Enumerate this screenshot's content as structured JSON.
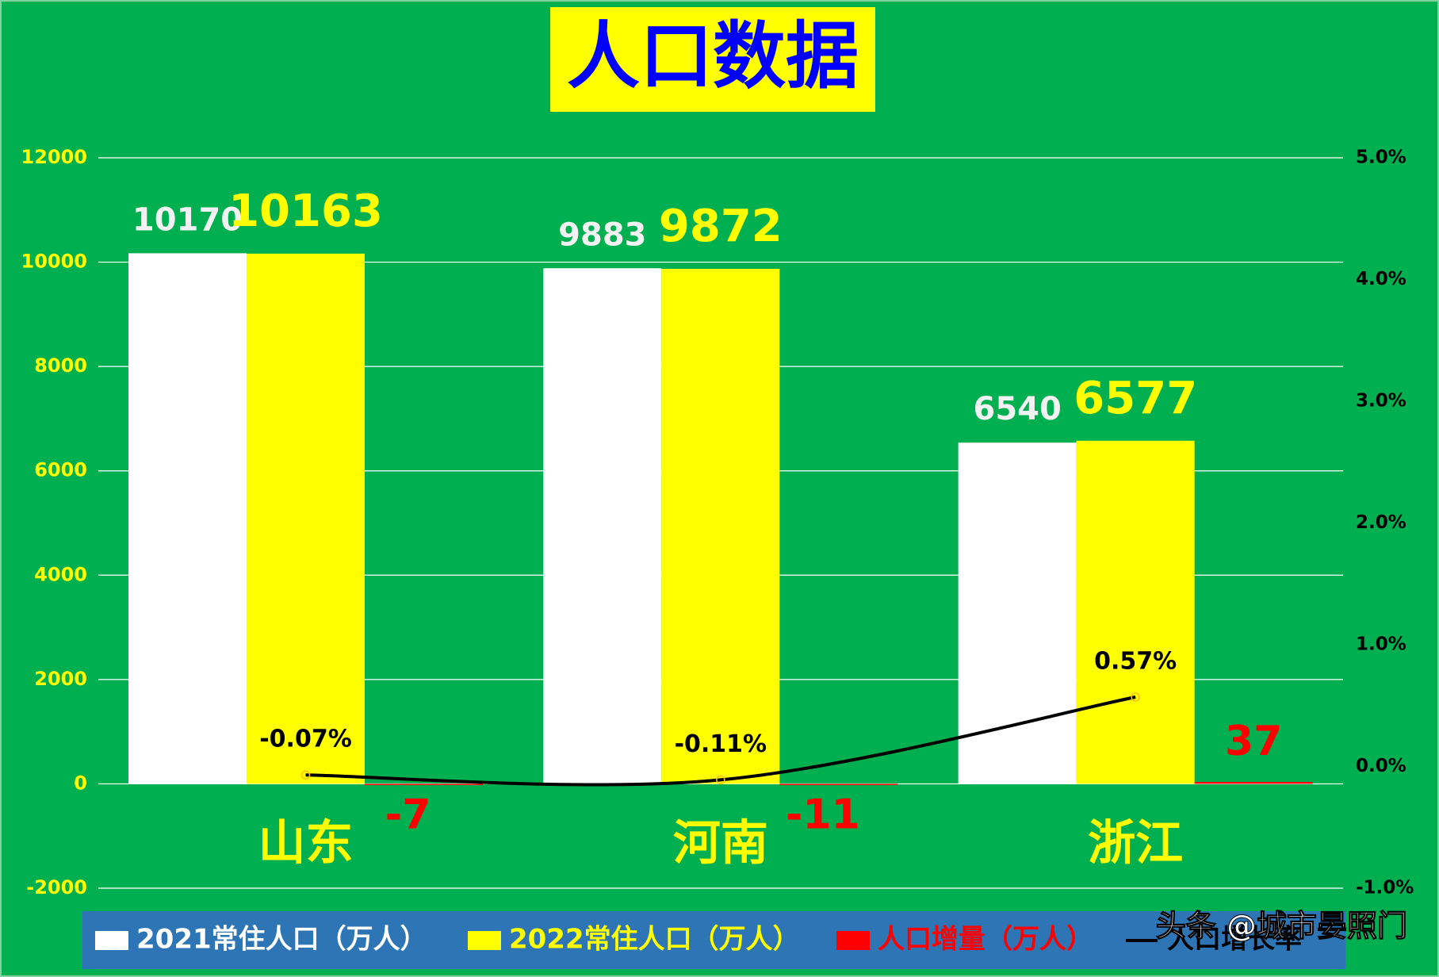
{
  "chart_data": {
    "type": "combo",
    "title": "人口数据",
    "categories": [
      "山东",
      "河南",
      "浙江"
    ],
    "series": [
      {
        "name": "2021常住人口（万人）",
        "color": "#ffffff",
        "type": "bar",
        "values": [
          10170,
          9883,
          6540
        ]
      },
      {
        "name": "2022常住人口（万人）",
        "color": "#ffff00",
        "type": "bar",
        "values": [
          10163,
          9872,
          6577
        ]
      },
      {
        "name": "人口增量（万人）",
        "color": "#ff0000",
        "type": "bar",
        "values": [
          -7,
          -11,
          37
        ]
      },
      {
        "name": "人口增长率",
        "color": "#000000",
        "type": "line",
        "axis": "y2",
        "values": [
          -0.07,
          -0.11,
          0.57
        ],
        "value_labels": [
          "-0.07%",
          "-0.11%",
          "0.57%"
        ]
      }
    ],
    "ylim": [
      -2000,
      12000
    ],
    "yticks": [
      -2000,
      0,
      2000,
      4000,
      6000,
      8000,
      10000,
      12000
    ],
    "y2lim": [
      -1,
      5
    ],
    "y2ticks": [
      {
        "value": -1,
        "label": "-1.0%"
      },
      {
        "value": 0,
        "label": "0.0%"
      },
      {
        "value": 1,
        "label": "1.0%"
      },
      {
        "value": 2,
        "label": "2.0%"
      },
      {
        "value": 3,
        "label": "3.0%"
      },
      {
        "value": 4,
        "label": "4.0%"
      },
      {
        "value": 5,
        "label": "5.0%"
      }
    ],
    "grid": true,
    "legend": "bottom",
    "watermark": "头条 @城市晏照门"
  }
}
